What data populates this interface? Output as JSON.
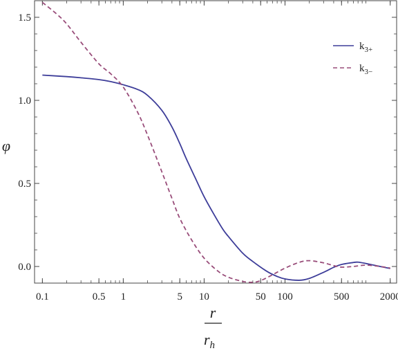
{
  "chart_data": {
    "type": "line",
    "title": "",
    "xscale": "log",
    "xlim": [
      0.08,
      2400
    ],
    "ylim": [
      -0.1,
      1.6
    ],
    "xlabel": {
      "numerator": "r",
      "denominator_base": "r",
      "denominator_sub": "h"
    },
    "ylabel": "φ",
    "grid": false,
    "legend_position": "top-right",
    "x_ticks": [
      {
        "value": 0.1,
        "label": "0.1"
      },
      {
        "value": 0.5,
        "label": "0.5"
      },
      {
        "value": 1,
        "label": "1"
      },
      {
        "value": 5,
        "label": "5"
      },
      {
        "value": 10,
        "label": "10"
      },
      {
        "value": 50,
        "label": "50"
      },
      {
        "value": 100,
        "label": "100"
      },
      {
        "value": 500,
        "label": "500"
      },
      {
        "value": 2000,
        "label": "2000"
      }
    ],
    "y_ticks": [
      {
        "value": 0.0,
        "label": "0.0"
      },
      {
        "value": 0.5,
        "label": "0.5"
      },
      {
        "value": 1.0,
        "label": "1.0"
      },
      {
        "value": 1.5,
        "label": "1.5"
      }
    ],
    "series": [
      {
        "name_base": "k",
        "name_sub": "3+",
        "color": "#3d3d99",
        "dash": "solid",
        "points": [
          [
            0.1,
            1.152
          ],
          [
            0.2,
            1.143
          ],
          [
            0.3,
            1.136
          ],
          [
            0.5,
            1.125
          ],
          [
            0.7,
            1.113
          ],
          [
            1.0,
            1.094
          ],
          [
            1.5,
            1.066
          ],
          [
            2.0,
            1.03
          ],
          [
            3.0,
            0.94
          ],
          [
            4.0,
            0.84
          ],
          [
            5.0,
            0.74
          ],
          [
            6.0,
            0.65
          ],
          [
            8.0,
            0.52
          ],
          [
            10.0,
            0.42
          ],
          [
            13.0,
            0.32
          ],
          [
            17.0,
            0.225
          ],
          [
            20.0,
            0.18
          ],
          [
            30.0,
            0.08
          ],
          [
            40.0,
            0.03
          ],
          [
            60.0,
            -0.03
          ],
          [
            80.0,
            -0.06
          ],
          [
            100.0,
            -0.075
          ],
          [
            150.0,
            -0.083
          ],
          [
            200.0,
            -0.072
          ],
          [
            300.0,
            -0.035
          ],
          [
            400.0,
            -0.005
          ],
          [
            500.0,
            0.012
          ],
          [
            700.0,
            0.024
          ],
          [
            800.0,
            0.026
          ],
          [
            1000.0,
            0.018
          ],
          [
            1500.0,
            0.0
          ],
          [
            2000.0,
            -0.012
          ]
        ]
      },
      {
        "name_base": "k",
        "name_sub": "3−",
        "color": "#994d7a",
        "dash": "dashed",
        "points": [
          [
            0.1,
            1.59
          ],
          [
            0.15,
            1.52
          ],
          [
            0.2,
            1.46
          ],
          [
            0.3,
            1.35
          ],
          [
            0.5,
            1.22
          ],
          [
            0.7,
            1.16
          ],
          [
            1.0,
            1.08
          ],
          [
            1.5,
            0.93
          ],
          [
            2.0,
            0.79
          ],
          [
            3.0,
            0.57
          ],
          [
            4.0,
            0.41
          ],
          [
            5.0,
            0.29
          ],
          [
            7.0,
            0.16
          ],
          [
            10.0,
            0.05
          ],
          [
            15.0,
            -0.03
          ],
          [
            20.0,
            -0.065
          ],
          [
            30.0,
            -0.09
          ],
          [
            40.0,
            -0.095
          ],
          [
            50.0,
            -0.085
          ],
          [
            70.0,
            -0.05
          ],
          [
            100.0,
            -0.01
          ],
          [
            150.0,
            0.025
          ],
          [
            200.0,
            0.035
          ],
          [
            300.0,
            0.022
          ],
          [
            400.0,
            0.005
          ],
          [
            500.0,
            -0.004
          ],
          [
            700.0,
            0.0
          ],
          [
            1000.0,
            0.008
          ],
          [
            1500.0,
            0.0
          ],
          [
            2000.0,
            -0.01
          ]
        ]
      }
    ]
  }
}
